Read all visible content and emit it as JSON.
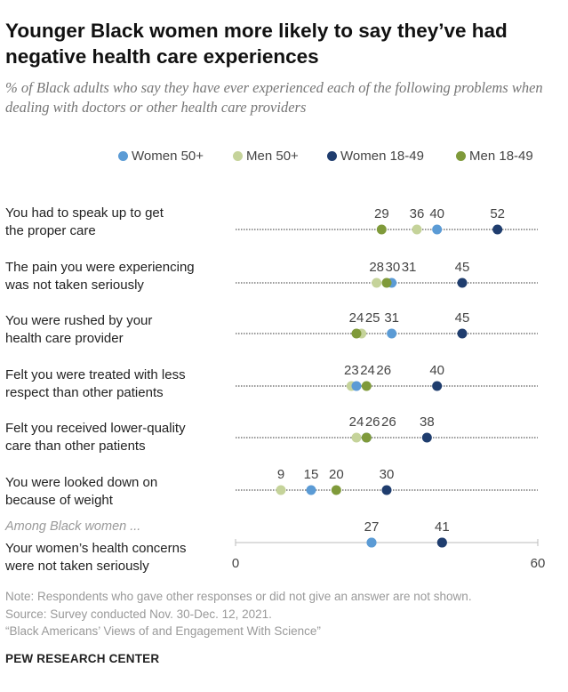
{
  "title": "Younger Black women more likely to say they’ve had negative health care experiences",
  "subtitle": "% of Black adults who say they have ever experienced each of the following problems when dealing with doctors or other health care providers",
  "subgroup_label": "Among Black women ...",
  "notes": {
    "note": "Note: Respondents who gave other responses or did not give an answer are not shown.",
    "source": "Source: Survey conducted Nov. 30-Dec. 12, 2021.",
    "report": "“Black Americans’ Views of and Engagement With Science”",
    "org": "PEW RESEARCH CENTER"
  },
  "colors": {
    "women_50_plus": "#5b9bd5",
    "men_50_plus": "#c5d39a",
    "women_18_49": "#1f3d6e",
    "men_18_49": "#7f9a3a",
    "dotted_line": "#777777",
    "axis_text": "#444444"
  },
  "chart_data": {
    "type": "scatter",
    "subtype": "dot-plot",
    "xlim": [
      0,
      60
    ],
    "xticks": [
      0,
      60
    ],
    "legend_position": "top",
    "series": [
      {
        "key": "women_50_plus",
        "name": "Women 50+"
      },
      {
        "key": "men_50_plus",
        "name": "Men 50+"
      },
      {
        "key": "women_18_49",
        "name": "Women 18-49"
      },
      {
        "key": "men_18_49",
        "name": "Men 18-49"
      }
    ],
    "categories": [
      "You had to speak up to get the proper care",
      "The pain you were experiencing was not taken seriously",
      "You were rushed by your health care provider",
      "Felt you were treated with less respect than other patients",
      "Felt you received lower-quality care than other patients",
      "You were looked down on because of weight",
      "Your women's health concerns were not taken seriously"
    ],
    "rows": [
      {
        "label_lines": [
          "You had to speak up to get",
          "the proper care"
        ],
        "values": {
          "men_18_49": 29,
          "men_50_plus": 36,
          "women_50_plus": 40,
          "women_18_49": 52
        },
        "data_labels": [
          [
            "29",
            29
          ],
          [
            "36",
            36
          ],
          [
            "40",
            40
          ],
          [
            "52",
            52
          ]
        ],
        "dotted": true
      },
      {
        "label_lines": [
          "The pain you were experiencing",
          "was not taken seriously"
        ],
        "values": {
          "men_50_plus": 28,
          "men_18_49": 30,
          "women_50_plus": 31,
          "women_18_49": 45
        },
        "data_labels": [
          [
            "28",
            28
          ],
          [
            "30",
            30
          ],
          [
            "31",
            31
          ],
          [
            "45",
            45
          ]
        ],
        "dotted": true
      },
      {
        "label_lines": [
          "You were rushed by your",
          "health care provider"
        ],
        "values": {
          "men_18_49": 24,
          "men_50_plus": 25,
          "women_50_plus": 31,
          "women_18_49": 45
        },
        "data_labels": [
          [
            "24",
            24
          ],
          [
            "25",
            25
          ],
          [
            "31",
            31
          ],
          [
            "45",
            45
          ]
        ],
        "dotted": true
      },
      {
        "label_lines": [
          "Felt you were treated with less",
          "respect than other patients"
        ],
        "values": {
          "men_50_plus": 23,
          "women_50_plus": 24,
          "men_18_49": 26,
          "women_18_49": 40
        },
        "data_labels": [
          [
            "23",
            23
          ],
          [
            "24",
            24
          ],
          [
            "26",
            26
          ],
          [
            "40",
            40
          ]
        ],
        "dotted": true
      },
      {
        "label_lines": [
          "Felt you received lower-quality",
          "care than other patients"
        ],
        "values": {
          "men_50_plus": 24,
          "women_50_plus": 26,
          "men_18_49": 26,
          "women_18_49": 38
        },
        "data_labels": [
          [
            "24",
            24
          ],
          [
            "26",
            26
          ],
          [
            "26",
            26
          ],
          [
            "38",
            38
          ]
        ],
        "dotted": true
      },
      {
        "label_lines": [
          "You were looked down on",
          "because of weight"
        ],
        "values": {
          "men_50_plus": 9,
          "women_50_plus": 15,
          "men_18_49": 20,
          "women_18_49": 30
        },
        "data_labels": [
          [
            "9",
            9
          ],
          [
            "15",
            15
          ],
          [
            "20",
            20
          ],
          [
            "30",
            30
          ]
        ],
        "dotted": true
      },
      {
        "label_lines": [
          "Your women’s health concerns",
          "were not taken seriously"
        ],
        "values": {
          "women_50_plus": 27,
          "women_18_49": 41
        },
        "data_labels": [
          [
            "27",
            27
          ],
          [
            "41",
            41
          ]
        ],
        "dotted": false
      }
    ]
  }
}
